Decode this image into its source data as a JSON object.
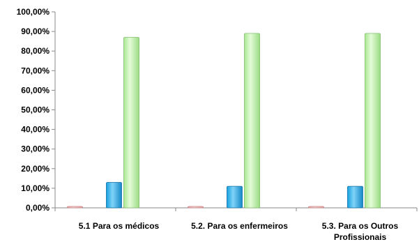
{
  "chart_data": {
    "type": "bar",
    "categories": [
      [
        "5.1 Para os médicos"
      ],
      [
        "5.2. Para os enfermeiros"
      ],
      [
        "5.3. Para os Outros",
        "Profissionais"
      ]
    ],
    "series": [
      {
        "values": [
          0.0,
          0.0,
          0.0
        ],
        "color": "#e8a0a0",
        "highlight": "#f6d4d4"
      },
      {
        "values": [
          13.0,
          11.0,
          11.0
        ],
        "color": "#16a0e0",
        "highlight": "#7fd3f7"
      },
      {
        "values": [
          87.0,
          89.0,
          89.0
        ],
        "color": "#a9e892",
        "highlight": "#e4fbd8"
      }
    ],
    "ylim": [
      0,
      100
    ],
    "yticks": [
      "0,00%",
      "10,00%",
      "20,00%",
      "30,00%",
      "40,00%",
      "50,00%",
      "60,00%",
      "70,00%",
      "80,00%",
      "90,00%",
      "100,00%"
    ],
    "grid": false,
    "legend": "none"
  }
}
